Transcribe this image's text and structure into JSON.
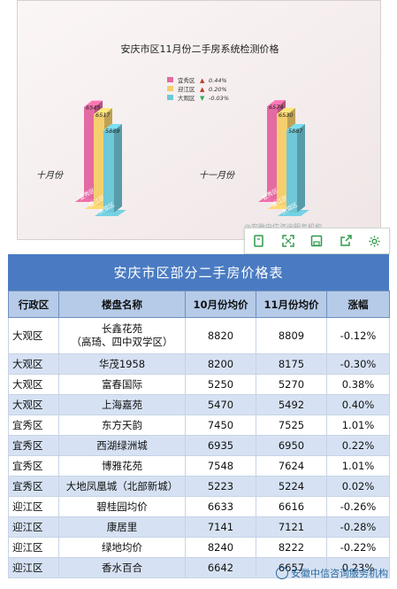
{
  "chart": {
    "title": "安庆市区11月份二手房系统检测价格",
    "legend": [
      {
        "name": "宜秀区",
        "arrow": "▲",
        "change": "0.44%",
        "color": "#e46aa3",
        "arrow_color": "#c0392b"
      },
      {
        "name": "迎江区",
        "arrow": "▲",
        "change": "0.20%",
        "color": "#f5cf6e",
        "arrow_color": "#c0392b"
      },
      {
        "name": "大观区",
        "arrow": "▼",
        "change": "-0.03%",
        "color": "#6fc8d8",
        "arrow_color": "#27ae60"
      }
    ],
    "groups": [
      {
        "label": "十月份",
        "values": [
          6545,
          6517,
          5889
        ]
      },
      {
        "label": "十一月份",
        "values": [
          6574,
          6530,
          5887
        ]
      }
    ],
    "base_labels": [
      "宜秀区",
      "迎江区",
      "大观区"
    ],
    "watermark": "@安徽中信咨询服务机构"
  },
  "chart_data": {
    "type": "bar",
    "title": "安庆市区11月份二手房系统检测价格",
    "categories": [
      "十月份",
      "十一月份"
    ],
    "series": [
      {
        "name": "宜秀区",
        "values": [
          6545,
          6574
        ]
      },
      {
        "name": "迎江区",
        "values": [
          6517,
          6530
        ]
      },
      {
        "name": "大观区",
        "values": [
          5889,
          5887
        ]
      }
    ]
  },
  "toolbar": {
    "buttons": [
      {
        "name": "copy-button",
        "icon": "copy-icon"
      },
      {
        "name": "expand-button",
        "icon": "expand-icon"
      },
      {
        "name": "save-button",
        "icon": "save-icon"
      },
      {
        "name": "share-button",
        "icon": "share-icon"
      },
      {
        "name": "settings-button",
        "icon": "gear-icon"
      }
    ],
    "color": "#2e9a4a"
  },
  "table": {
    "title": "安庆市区部分二手房价格表",
    "headers": [
      "行政区",
      "楼盘名称",
      "10月份均价",
      "11月份均价",
      "涨幅"
    ],
    "rows": [
      {
        "district": "大观区",
        "name": "长鑫花苑",
        "name2": "（高琦、四中双学区）",
        "oct": "8820",
        "nov": "8809",
        "change": "-0.12%"
      },
      {
        "district": "大观区",
        "name": "华茂1958",
        "oct": "8200",
        "nov": "8175",
        "change": "-0.30%"
      },
      {
        "district": "大观区",
        "name": "富春国际",
        "oct": "5250",
        "nov": "5270",
        "change": "0.38%"
      },
      {
        "district": "大观区",
        "name": "上海嘉苑",
        "oct": "5470",
        "nov": "5492",
        "change": "0.40%"
      },
      {
        "district": "宜秀区",
        "name": "东方天韵",
        "oct": "7450",
        "nov": "7525",
        "change": "1.01%"
      },
      {
        "district": "宜秀区",
        "name": "西湖绿洲城",
        "oct": "6935",
        "nov": "6950",
        "change": "0.22%"
      },
      {
        "district": "宜秀区",
        "name": "博雅花苑",
        "oct": "7548",
        "nov": "7624",
        "change": "1.01%"
      },
      {
        "district": "宜秀区",
        "name": "大地凤凰城（北部新城）",
        "oct": "5223",
        "nov": "5224",
        "change": "0.02%"
      },
      {
        "district": "迎江区",
        "name": "碧桂园均价",
        "oct": "6633",
        "nov": "6616",
        "change": "-0.26%"
      },
      {
        "district": "迎江区",
        "name": "康居里",
        "oct": "7141",
        "nov": "7121",
        "change": "-0.28%"
      },
      {
        "district": "迎江区",
        "name": "绿地均价",
        "oct": "8240",
        "nov": "8222",
        "change": "-0.22%"
      },
      {
        "district": "迎江区",
        "name": "香水百合",
        "oct": "6642",
        "nov": "6657",
        "change": "0.23%"
      }
    ]
  },
  "watermark": "安徽中信咨询服务机构"
}
